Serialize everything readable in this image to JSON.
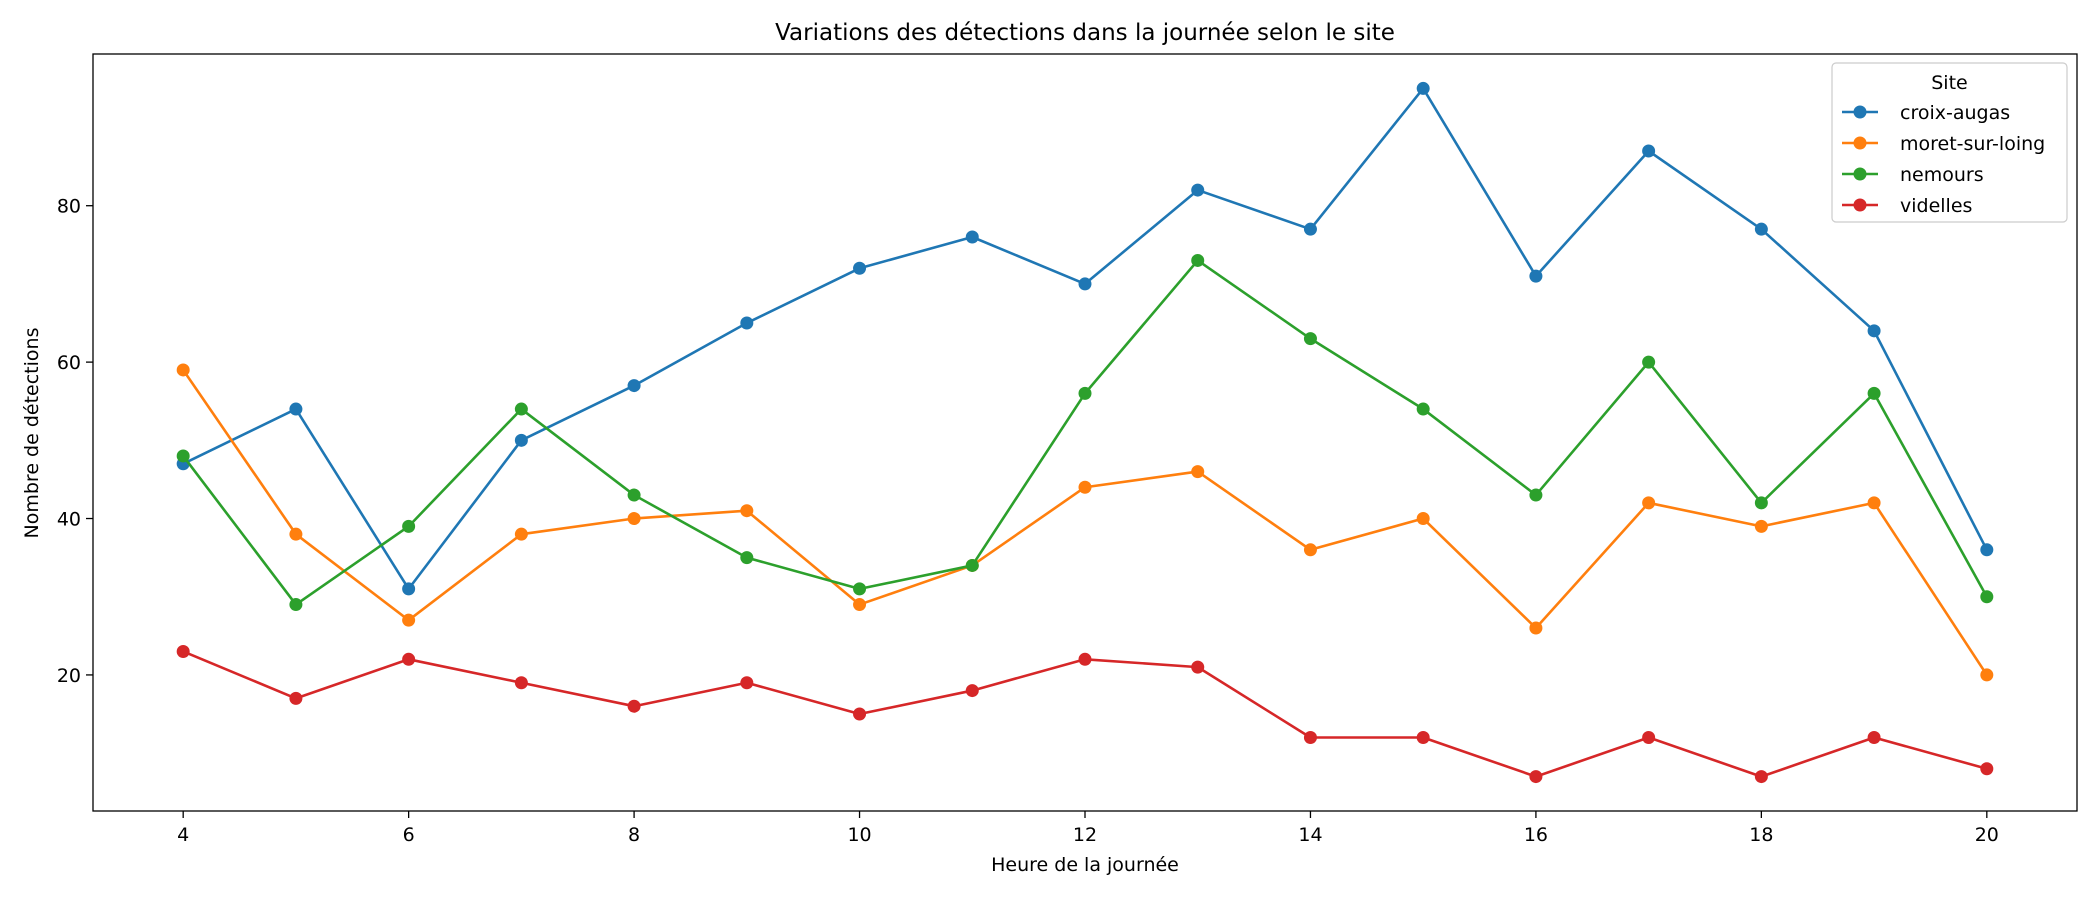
{
  "chart_data": {
    "type": "line",
    "title": "Variations des détections dans la journée selon le site",
    "xlabel": "Heure de la journée",
    "ylabel": "Nombre de détections",
    "x": [
      4,
      5,
      6,
      7,
      8,
      9,
      10,
      11,
      12,
      13,
      14,
      15,
      16,
      17,
      18,
      19,
      20
    ],
    "xticks": [
      "4",
      "6",
      "8",
      "10",
      "12",
      "14",
      "16",
      "18",
      "20"
    ],
    "yticks": [
      "20",
      "40",
      "60",
      "80"
    ],
    "xlim": [
      3.2,
      20.8
    ],
    "ylim": [
      2.6,
      99.4
    ],
    "grid": false,
    "legend": {
      "title": "Site",
      "placement": "top-right"
    },
    "markers": true,
    "series": [
      {
        "name": "croix-augas",
        "color": "#1f77b4",
        "values": [
          47,
          54,
          31,
          50,
          57,
          65,
          72,
          76,
          70,
          82,
          77,
          95,
          71,
          87,
          77,
          64,
          36
        ]
      },
      {
        "name": "moret-sur-loing",
        "color": "#ff7f0e",
        "values": [
          59,
          38,
          27,
          38,
          40,
          41,
          29,
          34,
          44,
          46,
          36,
          40,
          26,
          42,
          39,
          42,
          20
        ]
      },
      {
        "name": "nemours",
        "color": "#2ca02c",
        "values": [
          48,
          29,
          39,
          54,
          43,
          35,
          31,
          34,
          56,
          73,
          63,
          54,
          43,
          60,
          42,
          56,
          30
        ]
      },
      {
        "name": "videlles",
        "color": "#d62728",
        "values": [
          23,
          17,
          22,
          19,
          16,
          19,
          15,
          18,
          22,
          21,
          12,
          12,
          7,
          12,
          7,
          12,
          8
        ]
      }
    ]
  }
}
